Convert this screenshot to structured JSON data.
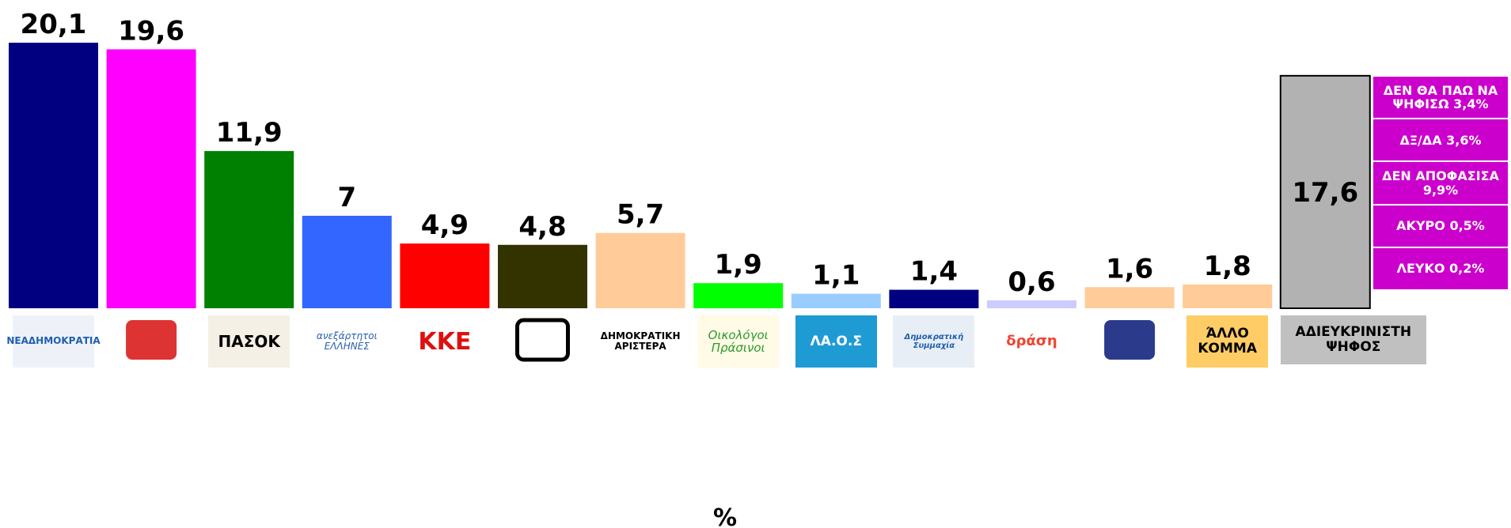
{
  "chart_data": {
    "type": "bar",
    "categories": [
      "ΝΕΑΔΗΜΟΚΡΑΤΙΑ",
      null,
      "ΠΑΣΟΚ",
      "ανεξάρτητοι ΕΛΛΗΝΕΣ",
      "ΚΚΕ",
      null,
      "ΔΗΜΟΚΡΑΤΙΚΗ ΑΡΙΣΤΕΡΑ",
      "Οικολόγοι Πράσινοι",
      "ΛΑ.Ο.Σ",
      "Δημοκρατική Συμμαχία",
      "δράση",
      null,
      "ΆΛΛΟ ΚΟΜΜΑ",
      "ΑΔΙΕΥΚΡΙΝΙΣΤΗ ΨΗΦΟΣ"
    ],
    "values": [
      20.1,
      19.6,
      11.9,
      7,
      4.9,
      4.8,
      5.7,
      1.9,
      1.1,
      1.4,
      0.6,
      1.6,
      1.8,
      17.6
    ],
    "value_labels": [
      "20,1",
      "19,6",
      "11,9",
      "7",
      "4,9",
      "4,8",
      "5,7",
      "1,9",
      "1,1",
      "1,4",
      "0,6",
      "1,6",
      "1,8",
      "17,6"
    ],
    "colors": [
      "#000080",
      "#ff00ff",
      "#008000",
      "#3366ff",
      "#ff0000",
      "#333300",
      "#ffcc99",
      "#00ff00",
      "#99ccff",
      "#000080",
      "#ccccff",
      "#ffcc99",
      "#ffcc99",
      "#b2b2b2"
    ],
    "ylim": [
      0,
      21
    ],
    "breakdown": [
      "ΔΕΝ ΘΑ ΠΑΩ ΝΑ ΨΗΦΙΣΩ 3,4%",
      "ΔΞ/ΔΑ 3,6%",
      "ΔΕΝ ΑΠΟΦΑΣΙΣΑ 9,9%",
      "ΑΚΥΡΟ 0,5%",
      "ΛΕΥΚΟ 0,2%"
    ],
    "breakdown_color": "#cc00cc",
    "x_label": "%"
  }
}
